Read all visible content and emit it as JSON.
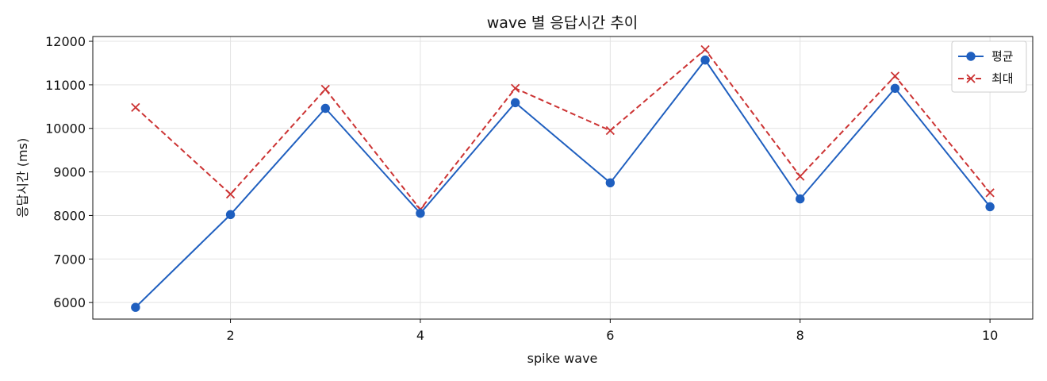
{
  "chart_data": {
    "type": "line",
    "title": "wave 별 응답시간 추이",
    "xlabel": "spike wave",
    "ylabel": "응답시간 (ms)",
    "x": [
      1,
      2,
      3,
      4,
      5,
      6,
      7,
      8,
      9,
      10
    ],
    "xticks": [
      2,
      4,
      6,
      8,
      10
    ],
    "yticks": [
      6000,
      7000,
      8000,
      9000,
      10000,
      11000,
      12000
    ],
    "xlim": [
      0.55,
      10.45
    ],
    "ylim": [
      5620,
      12110
    ],
    "grid": true,
    "legend_position": "top-right",
    "series": [
      {
        "name": "평균",
        "color": "#1f5fbf",
        "marker": "circle",
        "line_style": "solid",
        "values": [
          5890,
          8020,
          10460,
          8050,
          10590,
          8750,
          11570,
          8380,
          10920,
          8200
        ]
      },
      {
        "name": "최대",
        "color": "#cc3333",
        "marker": "x",
        "line_style": "dashed",
        "values": [
          10480,
          8490,
          10900,
          8140,
          10920,
          9950,
          11810,
          8900,
          11200,
          8520
        ]
      }
    ]
  }
}
